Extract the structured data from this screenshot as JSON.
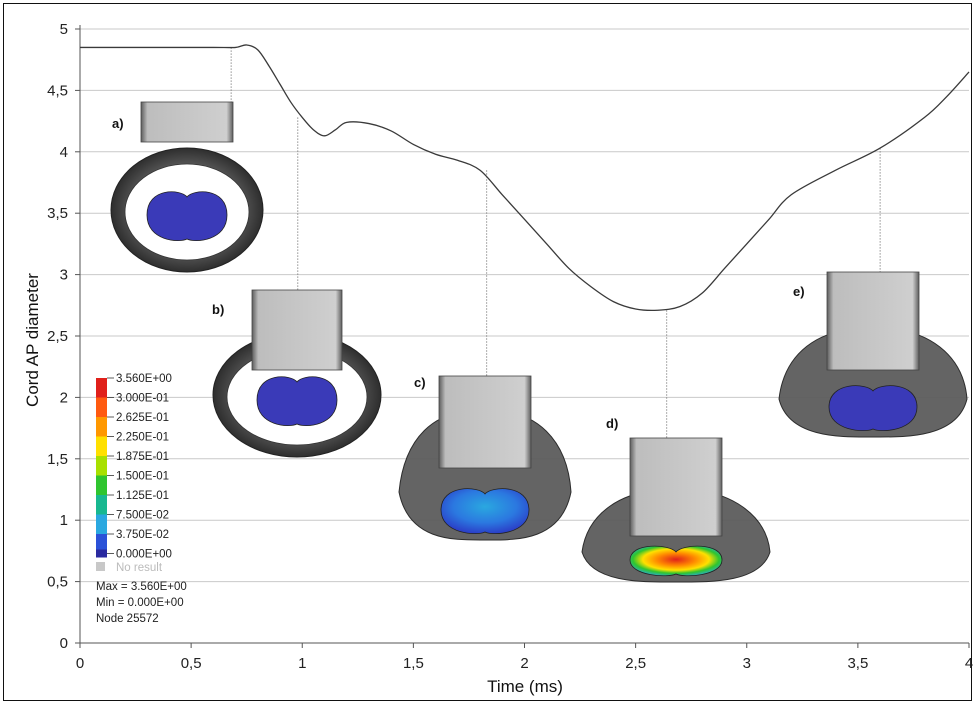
{
  "chart_data": {
    "type": "line",
    "xlabel": "Time (ms)",
    "ylabel": "Cord AP diameter",
    "xlim": [
      0,
      4
    ],
    "ylim": [
      0,
      5
    ],
    "x_ticks": [
      "0",
      "0,5",
      "1",
      "1,5",
      "2",
      "2,5",
      "3",
      "3,5",
      "4"
    ],
    "y_ticks": [
      "0",
      "0,5",
      "1",
      "1,5",
      "2",
      "2,5",
      "3",
      "3,5",
      "4",
      "4,5",
      "5"
    ],
    "grid": "horizontal",
    "series": [
      {
        "x": [
          0,
          0.2,
          0.4,
          0.6,
          0.7,
          0.75,
          0.8,
          0.85,
          0.9,
          0.95,
          1.0,
          1.05,
          1.1,
          1.15,
          1.2,
          1.3,
          1.4,
          1.5,
          1.6,
          1.7,
          1.8,
          1.9,
          2.0,
          2.1,
          2.2,
          2.3,
          2.4,
          2.5,
          2.6,
          2.7,
          2.8,
          2.9,
          3.0,
          3.1,
          3.2,
          3.4,
          3.6,
          3.8,
          3.9,
          4.0
        ],
        "y": [
          4.85,
          4.85,
          4.85,
          4.85,
          4.85,
          4.87,
          4.83,
          4.7,
          4.55,
          4.4,
          4.28,
          4.18,
          4.13,
          4.18,
          4.24,
          4.23,
          4.17,
          4.06,
          3.98,
          3.93,
          3.85,
          3.65,
          3.45,
          3.25,
          3.05,
          2.9,
          2.78,
          2.72,
          2.71,
          2.74,
          2.85,
          3.05,
          3.25,
          3.45,
          3.65,
          3.85,
          4.03,
          4.28,
          4.45,
          4.65
        ]
      }
    ],
    "annotations": [
      {
        "label": "a)",
        "x": 0.68,
        "y": 4.85
      },
      {
        "label": "b)",
        "x": 0.98,
        "y": 4.28
      },
      {
        "label": "c)",
        "x": 1.83,
        "y": 3.85
      },
      {
        "label": "d)",
        "x": 2.64,
        "y": 2.71
      },
      {
        "label": "e)",
        "x": 3.6,
        "y": 4.03
      }
    ],
    "colorbar": {
      "labels": [
        "3.560E+00",
        "3.000E-01",
        "2.625E-01",
        "2.250E-01",
        "1.875E-01",
        "1.500E-01",
        "1.125E-01",
        "7.500E-02",
        "3.750E-02",
        "0.000E+00"
      ],
      "colors": [
        "#e0201a",
        "#ff5a10",
        "#ff9800",
        "#ffe000",
        "#a8e000",
        "#2fc52f",
        "#18b890",
        "#2aa8e0",
        "#2b52d8",
        "#2a2aa0"
      ],
      "no_result": "No result",
      "no_result_color": "#c8c8c8",
      "max": "Max = 3.560E+00",
      "min": "Min = 0.000E+00",
      "node": "Node 25572"
    }
  }
}
